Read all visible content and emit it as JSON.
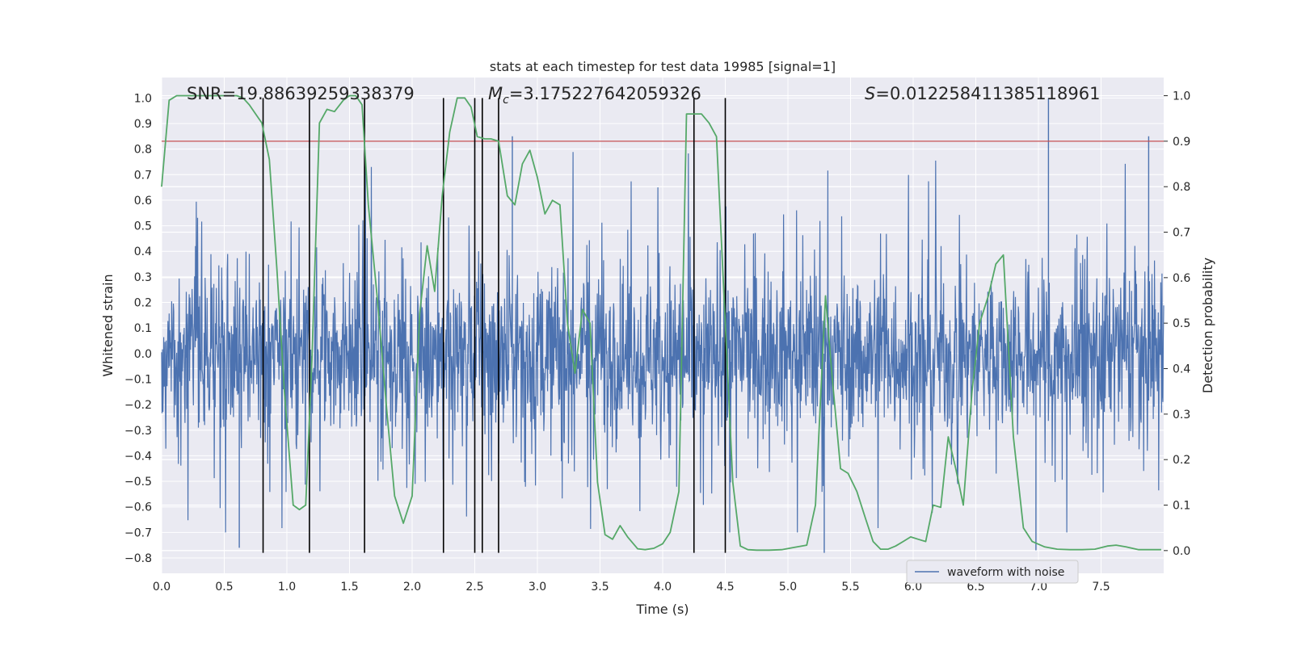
{
  "chart_data": {
    "type": "line",
    "title": "stats at each timestep for test data 19985 [signal=1]",
    "xlabel": "Time (s)",
    "ylabel_left": "Whitened strain",
    "ylabel_right": "Detection probability",
    "xlim": [
      0.0,
      8.0
    ],
    "ylim_left": [
      -0.86,
      1.08
    ],
    "ylim_right": [
      -0.05,
      1.04
    ],
    "x_ticks": [
      0.0,
      0.5,
      1.0,
      1.5,
      2.0,
      2.5,
      3.0,
      3.5,
      4.0,
      4.5,
      5.0,
      5.5,
      6.0,
      6.5,
      7.0,
      7.5
    ],
    "x_tick_labels": [
      "0.0",
      "0.5",
      "1.0",
      "1.5",
      "2.0",
      "2.5",
      "3.0",
      "3.5",
      "4.0",
      "4.5",
      "5.0",
      "5.5",
      "6.0",
      "6.5",
      "7.0",
      "7.5"
    ],
    "y_left_ticks": [
      1.0,
      0.9,
      0.8,
      0.7,
      0.6,
      0.5,
      0.4,
      0.3,
      0.2,
      0.1,
      0.0,
      -0.1,
      -0.2,
      -0.3,
      -0.4,
      -0.5,
      -0.6,
      -0.7,
      -0.8
    ],
    "y_left_tick_labels": [
      "1.0",
      "0.9",
      "0.8",
      "0.7",
      "0.6",
      "0.5",
      "0.4",
      "0.3",
      "0.2",
      "0.1",
      "0.0",
      "−0.1",
      "−0.2",
      "−0.3",
      "−0.4",
      "−0.5",
      "−0.6",
      "−0.7",
      "−0.8"
    ],
    "y_right_ticks": [
      1.0,
      0.9,
      0.8,
      0.7,
      0.6,
      0.5,
      0.4,
      0.3,
      0.2,
      0.1,
      0.0
    ],
    "y_right_tick_labels": [
      "1.0",
      "0.9",
      "0.8",
      "0.7",
      "0.6",
      "0.5",
      "0.4",
      "0.3",
      "0.2",
      "0.1",
      "0.0"
    ],
    "annotations": {
      "snr": "SNR=19.88639259338379",
      "mc_symbol": "M",
      "mc_subscript": "c",
      "mc_value": "=3.175227642059326",
      "s_symbol": "S",
      "s_value": "=0.012258411385118961"
    },
    "threshold": {
      "value": 0.9,
      "axis": "right",
      "color": "#c44e52"
    },
    "vertical_markers_x": [
      0.81,
      1.18,
      1.62,
      2.25,
      2.5,
      2.56,
      2.69,
      4.25,
      4.5
    ],
    "waveform": {
      "name": "waveform with noise",
      "color": "#4c72b0",
      "x_range": [
        0.0,
        8.0
      ],
      "typical_amplitude": 0.3,
      "peak_points": [
        {
          "x": 2.8,
          "y": 0.85
        },
        {
          "x": 7.08,
          "y": 1.0
        },
        {
          "x": 7.88,
          "y": 0.85
        },
        {
          "x": 0.62,
          "y": -0.76
        },
        {
          "x": 5.29,
          "y": -0.78
        },
        {
          "x": 6.98,
          "y": -0.77
        }
      ]
    },
    "detection_probability": {
      "name": "detection probability",
      "color": "#55a868",
      "x": [
        0.0,
        0.06,
        0.12,
        0.2,
        0.3,
        0.4,
        0.5,
        0.6,
        0.65,
        0.7,
        0.75,
        0.8,
        0.86,
        0.92,
        0.98,
        1.05,
        1.1,
        1.15,
        1.2,
        1.26,
        1.32,
        1.38,
        1.45,
        1.5,
        1.55,
        1.6,
        1.65,
        1.72,
        1.8,
        1.86,
        1.93,
        2.0,
        2.06,
        2.12,
        2.18,
        2.24,
        2.3,
        2.36,
        2.42,
        2.47,
        2.52,
        2.58,
        2.63,
        2.69,
        2.76,
        2.82,
        2.88,
        2.94,
        3.0,
        3.06,
        3.12,
        3.18,
        3.24,
        3.3,
        3.36,
        3.42,
        3.48,
        3.54,
        3.6,
        3.66,
        3.72,
        3.8,
        3.86,
        3.93,
        4.0,
        4.06,
        4.13,
        4.19,
        4.25,
        4.31,
        4.37,
        4.43,
        4.5,
        4.56,
        4.62,
        4.68,
        4.75,
        4.85,
        4.95,
        5.05,
        5.15,
        5.22,
        5.3,
        5.35,
        5.42,
        5.48,
        5.55,
        5.62,
        5.68,
        5.74,
        5.8,
        5.86,
        5.92,
        5.98,
        6.04,
        6.1,
        6.16,
        6.22,
        6.28,
        6.34,
        6.4,
        6.47,
        6.53,
        6.6,
        6.66,
        6.72,
        6.8,
        6.88,
        6.95,
        7.05,
        7.15,
        7.25,
        7.35,
        7.45,
        7.55,
        7.62,
        7.7,
        7.8,
        7.9,
        7.98
      ],
      "y": [
        0.8,
        0.99,
        1.0,
        1.0,
        1.0,
        1.0,
        1.0,
        1.0,
        0.995,
        0.98,
        0.96,
        0.94,
        0.86,
        0.62,
        0.35,
        0.1,
        0.09,
        0.1,
        0.42,
        0.94,
        0.97,
        0.965,
        0.99,
        1.0,
        1.0,
        0.98,
        0.76,
        0.56,
        0.3,
        0.12,
        0.06,
        0.12,
        0.52,
        0.67,
        0.57,
        0.78,
        0.92,
        0.995,
        0.995,
        0.975,
        0.91,
        0.905,
        0.905,
        0.9,
        0.78,
        0.76,
        0.85,
        0.88,
        0.82,
        0.74,
        0.77,
        0.76,
        0.5,
        0.39,
        0.53,
        0.5,
        0.15,
        0.035,
        0.025,
        0.055,
        0.03,
        0.004,
        0.002,
        0.005,
        0.015,
        0.04,
        0.13,
        0.96,
        0.96,
        0.96,
        0.94,
        0.91,
        0.5,
        0.15,
        0.01,
        0.002,
        0.001,
        0.001,
        0.002,
        0.007,
        0.012,
        0.1,
        0.56,
        0.39,
        0.18,
        0.17,
        0.13,
        0.07,
        0.02,
        0.003,
        0.003,
        0.01,
        0.02,
        0.03,
        0.025,
        0.02,
        0.1,
        0.095,
        0.25,
        0.18,
        0.1,
        0.35,
        0.5,
        0.56,
        0.63,
        0.65,
        0.25,
        0.05,
        0.02,
        0.008,
        0.003,
        0.002,
        0.002,
        0.003,
        0.01,
        0.012,
        0.008,
        0.002,
        0.002,
        0.002
      ]
    },
    "legend": {
      "entries": [
        "waveform with noise"
      ],
      "location": "lower-right"
    },
    "grid": true
  }
}
